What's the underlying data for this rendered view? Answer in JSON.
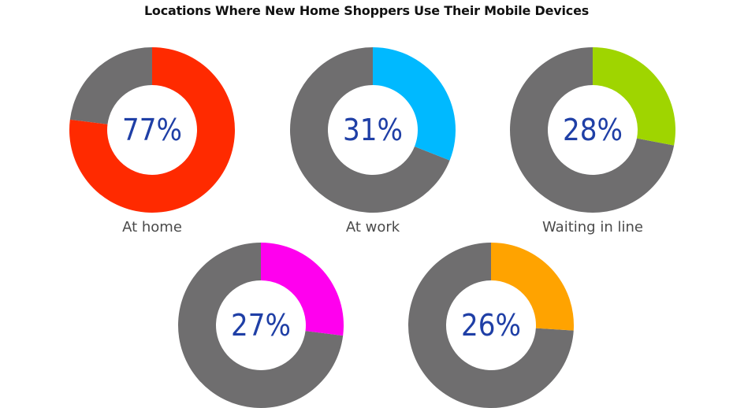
{
  "title": "Locations Where New Home Shoppers Use Their Mobile Devices",
  "chart_data": {
    "type": "pie",
    "title": "Locations Where New Home Shoppers Use Their Mobile Devices",
    "unit": "%",
    "remainder_color": "#6f6e6f",
    "items": [
      {
        "label": "At home",
        "value": 77,
        "display": "77%",
        "color": "#ff2a00"
      },
      {
        "label": "At work",
        "value": 31,
        "display": "31%",
        "color": "#00b9ff"
      },
      {
        "label": "Waiting in line",
        "value": 28,
        "display": "28%",
        "color": "#9fd500"
      },
      {
        "label": "",
        "value": 27,
        "display": "27%",
        "color": "#ff00ee"
      },
      {
        "label": "",
        "value": 26,
        "display": "26%",
        "color": "#ffa300"
      }
    ]
  }
}
